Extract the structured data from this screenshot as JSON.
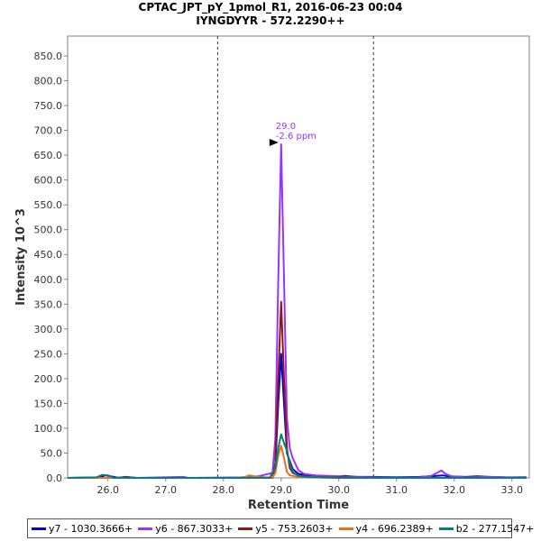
{
  "chart_data": {
    "type": "line",
    "title": "CPTAC_JPT_pY_1pmol_R1, 2016-06-23 00:04",
    "subtitle": "IYNGDYYR - 572.2290++",
    "xlabel": "Retention Time",
    "ylabel": "Intensity 10^3",
    "xlim": [
      25.3,
      33.3
    ],
    "ylim": [
      0,
      890
    ],
    "x_ticks": [
      "26.0",
      "27.0",
      "28.0",
      "29.0",
      "30.0",
      "31.0",
      "32.0",
      "33.0"
    ],
    "y_ticks": [
      "0.0",
      "50.0",
      "100.0",
      "150.0",
      "200.0",
      "250.0",
      "300.0",
      "350.0",
      "400.0",
      "450.0",
      "500.0",
      "550.0",
      "600.0",
      "650.0",
      "700.0",
      "750.0",
      "800.0",
      "850.0"
    ],
    "boundaries": [
      27.9,
      30.6
    ],
    "peak_annotation": {
      "x": 29.0,
      "y": 672,
      "line1": "29.0",
      "line2": "-2.6 ppm"
    },
    "series": [
      {
        "name": "y7 - 1030.3666+",
        "color": "#0000e0",
        "points": [
          [
            25.3,
            0
          ],
          [
            25.85,
            1
          ],
          [
            25.95,
            5
          ],
          [
            26.05,
            3
          ],
          [
            26.2,
            0
          ],
          [
            26.3,
            2
          ],
          [
            26.5,
            0
          ],
          [
            27.5,
            0
          ],
          [
            28.4,
            0
          ],
          [
            28.6,
            1
          ],
          [
            28.85,
            0
          ],
          [
            28.9,
            25
          ],
          [
            28.95,
            150
          ],
          [
            29.0,
            250
          ],
          [
            29.05,
            150
          ],
          [
            29.1,
            50
          ],
          [
            29.2,
            18
          ],
          [
            29.3,
            8
          ],
          [
            29.5,
            5
          ],
          [
            29.7,
            3
          ],
          [
            29.9,
            2
          ],
          [
            30.1,
            4
          ],
          [
            30.3,
            2
          ],
          [
            30.6,
            2
          ],
          [
            31.0,
            1
          ],
          [
            31.4,
            2
          ],
          [
            31.7,
            4
          ],
          [
            31.8,
            5
          ],
          [
            31.9,
            3
          ],
          [
            32.2,
            2
          ],
          [
            32.4,
            3
          ],
          [
            32.6,
            2
          ],
          [
            32.9,
            1
          ],
          [
            33.25,
            1
          ]
        ]
      },
      {
        "name": "y6 - 867.3033+",
        "color": "#9933ff",
        "points": [
          [
            25.3,
            0
          ],
          [
            26.0,
            0
          ],
          [
            26.25,
            1
          ],
          [
            26.5,
            0
          ],
          [
            27.3,
            2
          ],
          [
            27.4,
            0
          ],
          [
            28.3,
            1
          ],
          [
            28.6,
            3
          ],
          [
            28.85,
            10
          ],
          [
            28.9,
            80
          ],
          [
            28.95,
            400
          ],
          [
            29.0,
            672
          ],
          [
            29.05,
            400
          ],
          [
            29.1,
            120
          ],
          [
            29.15,
            60
          ],
          [
            29.2,
            40
          ],
          [
            29.3,
            15
          ],
          [
            29.4,
            8
          ],
          [
            29.6,
            5
          ],
          [
            29.8,
            4
          ],
          [
            30.0,
            3
          ],
          [
            30.3,
            2
          ],
          [
            30.6,
            1
          ],
          [
            31.0,
            0
          ],
          [
            31.4,
            1
          ],
          [
            31.6,
            4
          ],
          [
            31.7,
            10
          ],
          [
            31.78,
            15
          ],
          [
            31.85,
            8
          ],
          [
            31.95,
            3
          ],
          [
            32.2,
            1
          ],
          [
            32.6,
            2
          ],
          [
            33.25,
            0
          ]
        ]
      },
      {
        "name": "y5 - 753.2603+",
        "color": "#8b1a1a",
        "points": [
          [
            25.3,
            0
          ],
          [
            26.2,
            0
          ],
          [
            26.3,
            2
          ],
          [
            26.4,
            0
          ],
          [
            28.5,
            0
          ],
          [
            28.6,
            2
          ],
          [
            28.85,
            0
          ],
          [
            28.9,
            30
          ],
          [
            28.95,
            200
          ],
          [
            29.0,
            355
          ],
          [
            29.05,
            200
          ],
          [
            29.1,
            60
          ],
          [
            29.15,
            20
          ],
          [
            29.2,
            10
          ],
          [
            29.3,
            5
          ],
          [
            29.5,
            2
          ],
          [
            30.0,
            1
          ],
          [
            30.5,
            0
          ],
          [
            33.25,
            0
          ]
        ]
      },
      {
        "name": "y4 - 696.2389+",
        "color": "#e8711a",
        "points": [
          [
            25.3,
            0
          ],
          [
            28.2,
            0
          ],
          [
            28.35,
            1
          ],
          [
            28.45,
            5
          ],
          [
            28.55,
            3
          ],
          [
            28.65,
            1
          ],
          [
            28.85,
            1
          ],
          [
            28.9,
            10
          ],
          [
            28.95,
            45
          ],
          [
            29.0,
            65
          ],
          [
            29.05,
            40
          ],
          [
            29.1,
            12
          ],
          [
            29.15,
            5
          ],
          [
            29.3,
            2
          ],
          [
            29.6,
            1
          ],
          [
            30.0,
            0
          ],
          [
            33.25,
            0
          ]
        ]
      },
      {
        "name": "b2 - 277.1547+",
        "color": "#008080",
        "points": [
          [
            25.3,
            0
          ],
          [
            25.8,
            1
          ],
          [
            25.9,
            6
          ],
          [
            26.0,
            5
          ],
          [
            26.1,
            0
          ],
          [
            28.8,
            0
          ],
          [
            28.9,
            20
          ],
          [
            28.95,
            60
          ],
          [
            29.0,
            88
          ],
          [
            29.05,
            70
          ],
          [
            29.1,
            55
          ],
          [
            29.15,
            30
          ],
          [
            29.2,
            12
          ],
          [
            29.3,
            4
          ],
          [
            29.5,
            1
          ],
          [
            30.0,
            0
          ],
          [
            33.25,
            0
          ]
        ]
      }
    ]
  }
}
